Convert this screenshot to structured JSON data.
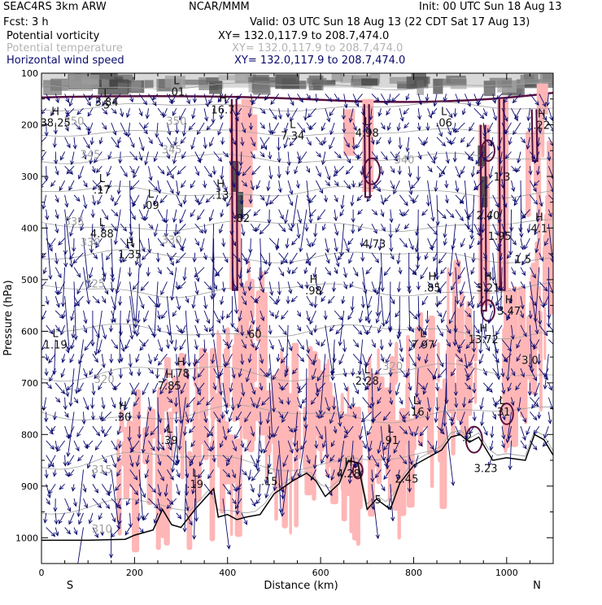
{
  "header": {
    "model": "SEAC4RS  3km ARW",
    "org": "NCAR/MMM",
    "init": "Init: 00 UTC Sun 18 Aug 13",
    "fcst": "Fcst:   3 h",
    "valid": "Valid: 03 UTC Sun 18 Aug 13 (22 CDT Sat 17 Aug 13)"
  },
  "fields": [
    {
      "name": "Potential vorticity",
      "xy": "XY= 132.0,117.9 to 208.7,474.0",
      "color": "#000000"
    },
    {
      "name": "Potential temperature",
      "xy": "XY= 132.0,117.9 to 208.7,474.0",
      "color": "#b4b4b4"
    },
    {
      "name": "Horizontal wind speed",
      "xy": "XY= 132.0,117.9 to 208.7,474.0",
      "color": "#0a0a6e"
    }
  ],
  "colors": {
    "pv_fill": "#ffb6b6",
    "pv_contour": "#5a1040",
    "theta": "#a0a0a0",
    "wind": "#0a0a6e",
    "terrain": "#000000",
    "label": "#111111"
  },
  "chart_data": {
    "type": "cross-section",
    "xlabel": "Distance (km)",
    "ylabel": "Pressure (hPa)",
    "xlim": [
      0,
      1100
    ],
    "ylim": [
      1050,
      100
    ],
    "xticks": [
      0,
      200,
      400,
      600,
      800,
      1000
    ],
    "yticks": [
      100,
      200,
      300,
      400,
      500,
      600,
      700,
      800,
      900,
      1000
    ],
    "x_end_labels": {
      "left": "S",
      "right": "N"
    },
    "terrain": [
      [
        0,
        1005
      ],
      [
        100,
        1005
      ],
      [
        180,
        1003
      ],
      [
        200,
        995
      ],
      [
        240,
        985
      ],
      [
        260,
        945
      ],
      [
        280,
        975
      ],
      [
        300,
        980
      ],
      [
        330,
        945
      ],
      [
        370,
        905
      ],
      [
        380,
        960
      ],
      [
        400,
        955
      ],
      [
        420,
        965
      ],
      [
        440,
        960
      ],
      [
        470,
        955
      ],
      [
        500,
        915
      ],
      [
        540,
        890
      ],
      [
        570,
        875
      ],
      [
        590,
        890
      ],
      [
        610,
        920
      ],
      [
        640,
        895
      ],
      [
        660,
        850
      ],
      [
        680,
        855
      ],
      [
        700,
        945
      ],
      [
        720,
        925
      ],
      [
        750,
        945
      ],
      [
        770,
        895
      ],
      [
        800,
        860
      ],
      [
        830,
        845
      ],
      [
        860,
        830
      ],
      [
        880,
        805
      ],
      [
        900,
        800
      ],
      [
        920,
        815
      ],
      [
        940,
        805
      ],
      [
        970,
        850
      ],
      [
        1000,
        845
      ],
      [
        1040,
        850
      ],
      [
        1060,
        800
      ],
      [
        1080,
        810
      ],
      [
        1100,
        840
      ]
    ],
    "pv_max_labels": [
      {
        "x": 140,
        "p": 165,
        "type": "L",
        "value": "5"
      },
      {
        "x": 140,
        "p": 160,
        "type": "",
        "value": "3.84"
      },
      {
        "x": 290,
        "p": 140,
        "type": "L",
        "value": ".01"
      },
      {
        "x": 390,
        "p": 175,
        "type": "H",
        "value": "16.7"
      },
      {
        "x": 30,
        "p": 200,
        "type": "H",
        "value": "38.25"
      },
      {
        "x": 540,
        "p": 225,
        "type": "L",
        "value": "7.34"
      },
      {
        "x": 700,
        "p": 220,
        "type": "L",
        "value": "4.98"
      },
      {
        "x": 865,
        "p": 200,
        "type": "L",
        "value": ".06"
      },
      {
        "x": 1075,
        "p": 205,
        "type": "H",
        "value": ".22"
      },
      {
        "x": 130,
        "p": 330,
        "type": "L",
        "value": ".17"
      },
      {
        "x": 235,
        "p": 360,
        "type": "L",
        "value": ".09"
      },
      {
        "x": 385,
        "p": 340,
        "type": "H",
        "value": ".13"
      },
      {
        "x": 430,
        "p": 385,
        "type": "",
        "value": ".82"
      },
      {
        "x": 960,
        "p": 380,
        "type": "",
        "value": "2.40"
      },
      {
        "x": 990,
        "p": 305,
        "type": "",
        "value": "1.3"
      },
      {
        "x": 1070,
        "p": 405,
        "type": "H",
        "value": "4.1"
      },
      {
        "x": 130,
        "p": 415,
        "type": "L",
        "value": "4.88"
      },
      {
        "x": 190,
        "p": 455,
        "type": "H",
        "value": "1.35"
      },
      {
        "x": 715,
        "p": 435,
        "type": "",
        "value": "4.73"
      },
      {
        "x": 985,
        "p": 420,
        "type": "",
        "value": "1.95"
      },
      {
        "x": 1035,
        "p": 465,
        "type": "",
        "value": "1.5"
      },
      {
        "x": 585,
        "p": 525,
        "type": "H",
        "value": ".98"
      },
      {
        "x": 840,
        "p": 520,
        "type": "H",
        "value": ".85"
      },
      {
        "x": 960,
        "p": 520,
        "type": "H",
        "value": "3.21"
      },
      {
        "x": 1005,
        "p": 565,
        "type": "H",
        "value": "3.47"
      },
      {
        "x": 455,
        "p": 610,
        "type": "",
        "value": ".60"
      },
      {
        "x": 30,
        "p": 630,
        "type": "L",
        "value": "1.19"
      },
      {
        "x": 820,
        "p": 630,
        "type": "L",
        "value": "7.97"
      },
      {
        "x": 950,
        "p": 620,
        "type": "H",
        "value": "13.72"
      },
      {
        "x": 300,
        "p": 685,
        "type": "H",
        "value": ".78"
      },
      {
        "x": 275,
        "p": 710,
        "type": "H",
        "value": "7.85"
      },
      {
        "x": 700,
        "p": 700,
        "type": "L",
        "value": "2.28"
      },
      {
        "x": 1050,
        "p": 660,
        "type": "",
        "value": "3.0"
      },
      {
        "x": 175,
        "p": 770,
        "type": "H",
        "value": ".30"
      },
      {
        "x": 805,
        "p": 760,
        "type": "L",
        "value": ".16"
      },
      {
        "x": 990,
        "p": 760,
        "type": "L",
        "value": ".31"
      },
      {
        "x": 275,
        "p": 815,
        "type": "L",
        "value": ".39"
      },
      {
        "x": 750,
        "p": 815,
        "type": "L",
        "value": ".91"
      },
      {
        "x": 915,
        "p": 810,
        "type": "",
        "value": ".2"
      },
      {
        "x": 955,
        "p": 870,
        "type": "",
        "value": "3.23"
      },
      {
        "x": 330,
        "p": 900,
        "type": "L",
        "value": ".19"
      },
      {
        "x": 490,
        "p": 895,
        "type": "L",
        "value": ".15"
      },
      {
        "x": 660,
        "p": 880,
        "type": "H",
        "value": "4.28"
      },
      {
        "x": 785,
        "p": 890,
        "type": "",
        "value": "2.45"
      },
      {
        "x": 720,
        "p": 930,
        "type": "",
        "value": ".5"
      }
    ],
    "theta_labels": [
      {
        "x": 70,
        "p": 200,
        "value": "350"
      },
      {
        "x": 290,
        "p": 200,
        "value": "350"
      },
      {
        "x": 105,
        "p": 265,
        "value": "345"
      },
      {
        "x": 280,
        "p": 255,
        "value": "345"
      },
      {
        "x": 70,
        "p": 395,
        "value": "335"
      },
      {
        "x": 105,
        "p": 435,
        "value": "330"
      },
      {
        "x": 280,
        "p": 430,
        "value": "330"
      },
      {
        "x": 115,
        "p": 515,
        "value": "325"
      },
      {
        "x": 135,
        "p": 700,
        "value": "320"
      },
      {
        "x": 130,
        "p": 875,
        "value": "315"
      },
      {
        "x": 130,
        "p": 990,
        "value": "310"
      },
      {
        "x": 780,
        "p": 275,
        "value": "340"
      },
      {
        "x": 755,
        "p": 675,
        "value": "320"
      }
    ]
  }
}
